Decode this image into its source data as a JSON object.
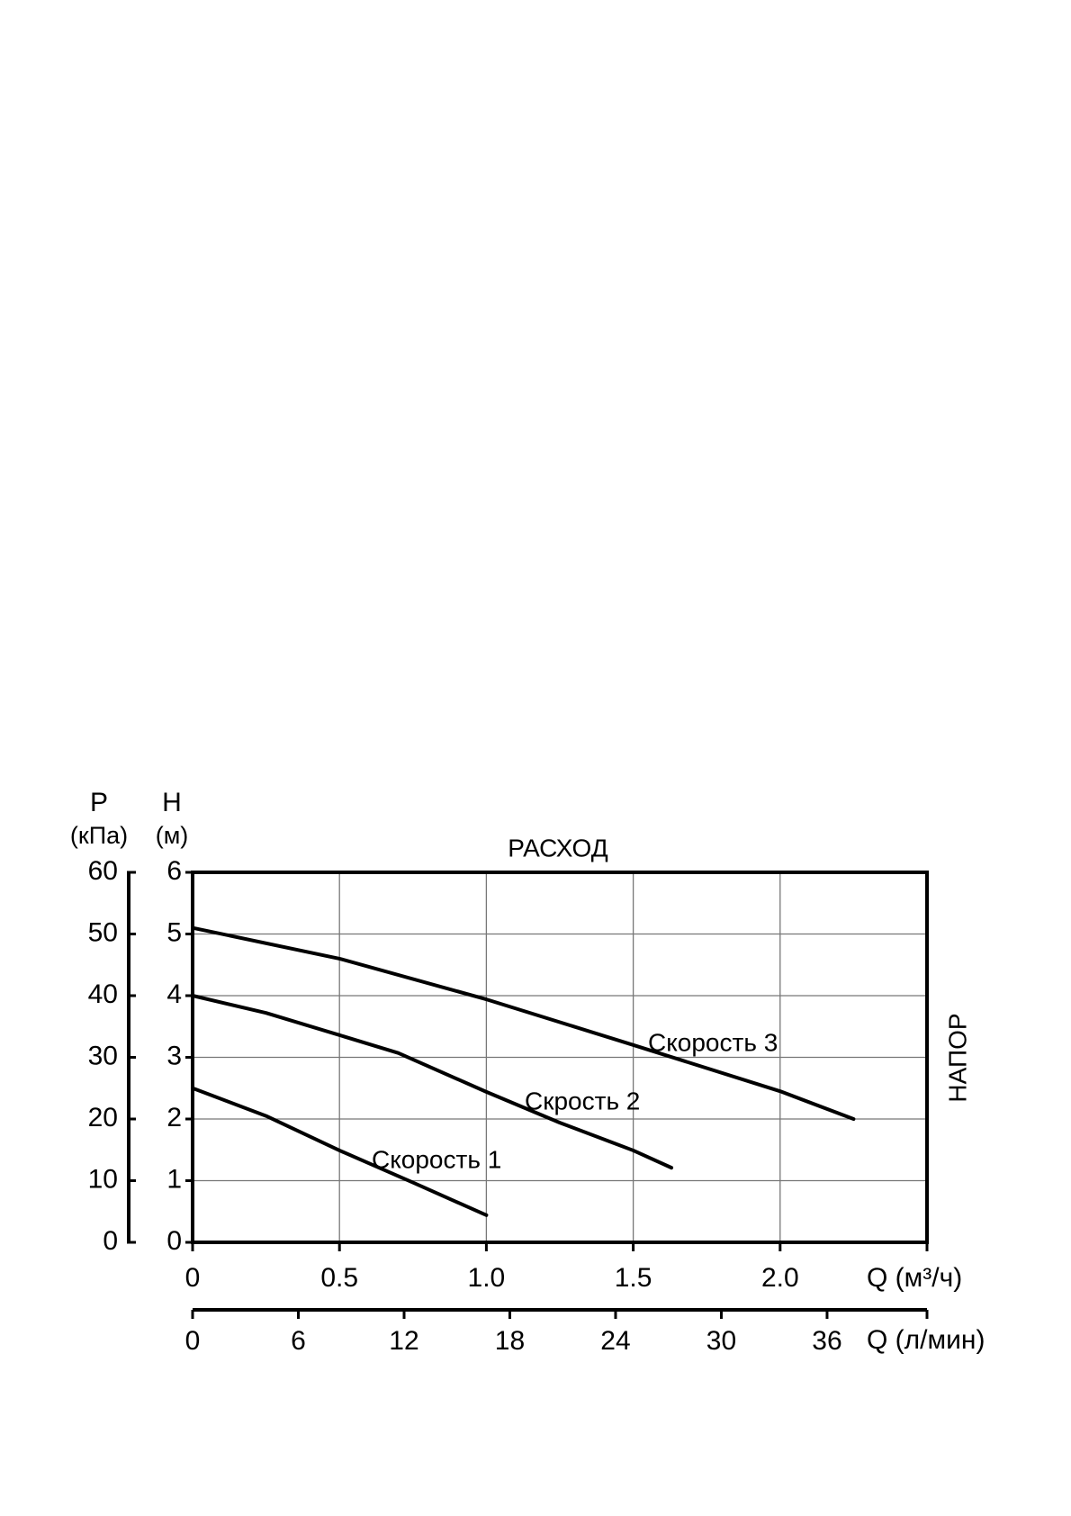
{
  "chart_data": {
    "type": "line",
    "title": "РАСХОД",
    "y_label": "H",
    "y_unit": "(м)",
    "y2_label": "P",
    "y2_unit": "(кПа)",
    "y_side_label": "НАПОР",
    "x_label": "Q (м³/ч)",
    "x2_label": "Q (л/мин)",
    "xlim": [
      0,
      2.5
    ],
    "xticks": [
      0,
      0.5,
      {
        "value": 1,
        "label": "1.0"
      },
      1.5,
      {
        "value": 2,
        "label": "2.0"
      }
    ],
    "x2lim": [
      0,
      41.67
    ],
    "x2ticks": [
      0,
      6,
      12,
      18,
      24,
      30,
      36
    ],
    "ylim": [
      0,
      6
    ],
    "yticks": [
      0,
      1,
      2,
      3,
      4,
      5,
      6
    ],
    "y2lim": [
      0,
      60
    ],
    "y2ticks": [
      0,
      10,
      20,
      30,
      40,
      50,
      60
    ],
    "grid": true,
    "series": [
      {
        "name": "Скорость 1",
        "color": "#000000",
        "x": [
          0,
          0.25,
          0.5,
          0.75,
          1.0
        ],
        "values": [
          2.5,
          2.05,
          1.49,
          0.97,
          0.44
        ]
      },
      {
        "name": "Скрость 2",
        "color": "#000000",
        "x": [
          0,
          0.25,
          0.5,
          0.7,
          1.0,
          1.25,
          1.5,
          1.63
        ],
        "values": [
          4.0,
          3.72,
          3.36,
          3.07,
          2.44,
          1.94,
          1.49,
          1.21
        ]
      },
      {
        "name": "Скорость 3",
        "color": "#000000",
        "x": [
          0,
          0.5,
          1.0,
          1.5,
          2.0,
          2.25
        ],
        "values": [
          5.1,
          4.6,
          3.94,
          3.2,
          2.45,
          2.0
        ]
      }
    ]
  }
}
